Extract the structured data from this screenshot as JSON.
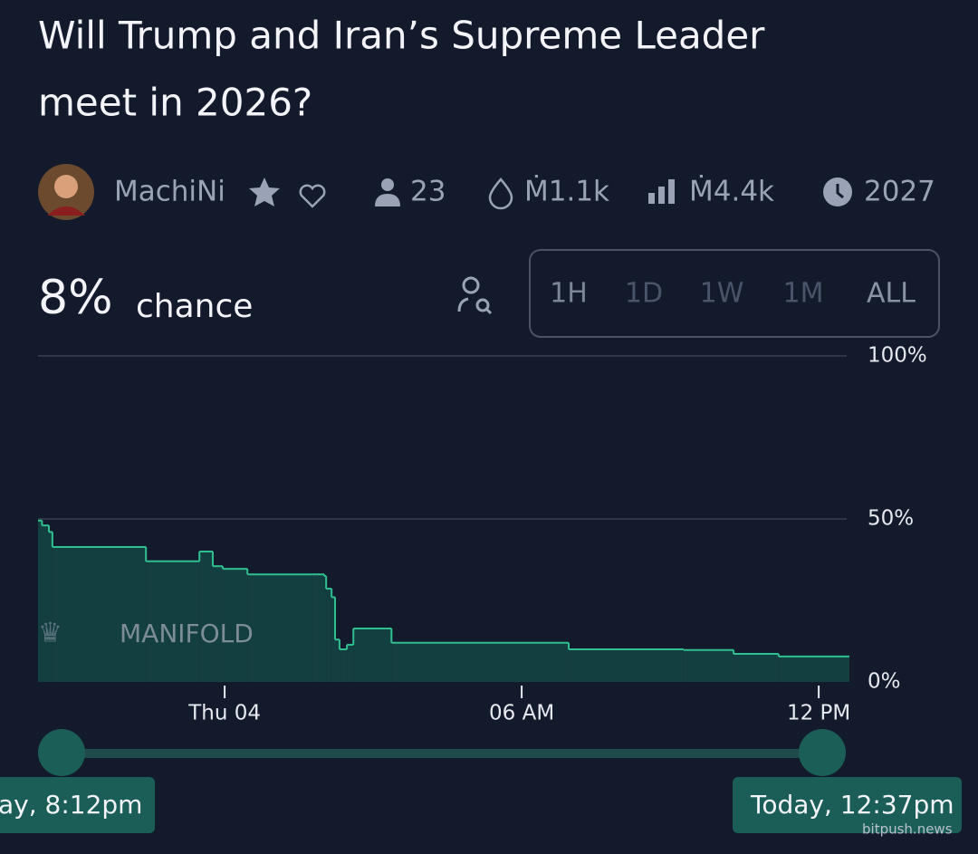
{
  "header": {
    "title_lines": [
      "Will Trump and Iran’s Supreme Leader",
      "meet in 2026?"
    ]
  },
  "stats": {
    "creator": "MachiNi",
    "traders": "23",
    "liquidity": "Ṁ1.1k",
    "volume": "Ṁ4.4k",
    "close": "2027"
  },
  "probability": {
    "value": "8%",
    "label": "chance"
  },
  "timeframes": [
    "1H",
    "1D",
    "1W",
    "1M",
    "ALL"
  ],
  "watermark": "MANIFOLD",
  "chart_data": {
    "type": "step",
    "x": [
      -3.77,
      -3.69,
      -3.55,
      -3.48,
      -1.59,
      -0.51,
      -0.24,
      -0.04,
      0.46,
      1.77,
      2.01,
      2.05,
      2.16,
      2.23,
      2.32,
      2.47,
      2.6,
      3.37,
      6.95,
      9.27,
      10.28,
      11.19,
      12.62
    ],
    "values": [
      49.5,
      48,
      46,
      41.4,
      37,
      40,
      35.5,
      34.7,
      33,
      33,
      32.5,
      28.6,
      26,
      13,
      10,
      11.4,
      16.4,
      12,
      10,
      9.8,
      8.6,
      7.8,
      7.8
    ],
    "color": "#2fc08f",
    "xlim": [
      -3.77,
      12.62
    ],
    "xticks": [
      {
        "value": 0,
        "label": "Thu 04"
      },
      {
        "value": 6,
        "label": "06 AM"
      },
      {
        "value": 12,
        "label": "12 PM"
      }
    ],
    "ylim": [
      0,
      100
    ],
    "yticks": [
      {
        "value": 0,
        "label": "0%"
      },
      {
        "value": 50,
        "label": "50%"
      },
      {
        "value": 100,
        "label": "100%"
      }
    ],
    "grid": true
  },
  "range": {
    "start": "ay, 8:12pm",
    "end": "Today, 12:37pm"
  },
  "source": "bitpush.news"
}
